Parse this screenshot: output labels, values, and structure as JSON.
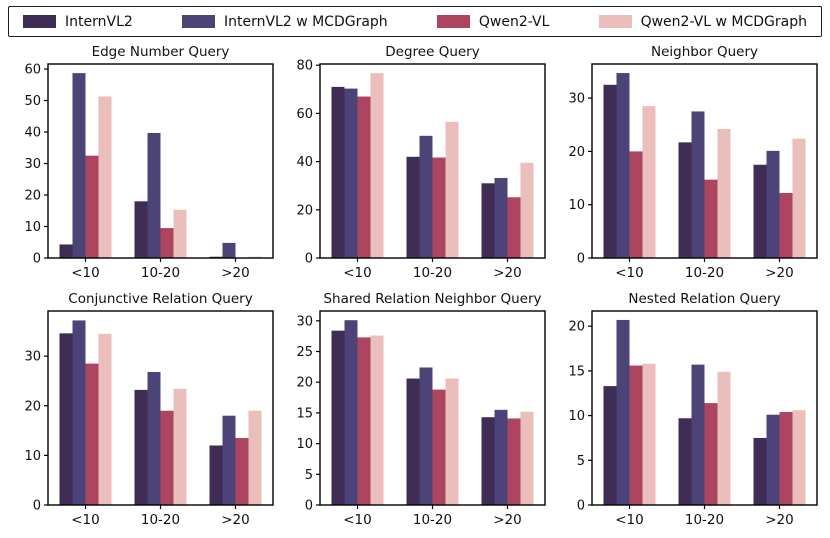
{
  "figure": {
    "background": "#ffffff"
  },
  "legend": {
    "border_color": "#1f1f1f",
    "items": [
      {
        "label": "InternVL2",
        "color": "#3F2D55"
      },
      {
        "label": "InternVL2 w MCDGraph",
        "color": "#4C4377"
      },
      {
        "label": "Qwen2-VL",
        "color": "#AE4560"
      },
      {
        "label": "Qwen2-VL w MCDGraph",
        "color": "#EABEBA"
      }
    ]
  },
  "chart_data": [
    {
      "type": "bar",
      "title": "Edge Number Query",
      "categories": [
        "<10",
        "10-20",
        ">20"
      ],
      "series": [
        {
          "name": "InternVL2",
          "values": [
            4.3,
            18.0,
            0.4
          ]
        },
        {
          "name": "InternVL2 w MCDGraph",
          "values": [
            58.7,
            39.7,
            4.8
          ]
        },
        {
          "name": "Qwen2-VL",
          "values": [
            32.5,
            9.5,
            0.0
          ]
        },
        {
          "name": "Qwen2-VL w MCDGraph",
          "values": [
            51.3,
            15.3,
            0.4
          ]
        }
      ],
      "ylim": [
        0,
        61.6
      ],
      "yticks": [
        0,
        10,
        20,
        30,
        40,
        50,
        60
      ],
      "grid": false,
      "legend_position": "figure-top"
    },
    {
      "type": "bar",
      "title": "Degree Query",
      "categories": [
        "<10",
        "10-20",
        ">20"
      ],
      "series": [
        {
          "name": "InternVL2",
          "values": [
            71.0,
            42.0,
            31.0
          ]
        },
        {
          "name": "InternVL2 w MCDGraph",
          "values": [
            70.3,
            50.7,
            33.2
          ]
        },
        {
          "name": "Qwen2-VL",
          "values": [
            67.0,
            41.7,
            25.2
          ]
        },
        {
          "name": "Qwen2-VL w MCDGraph",
          "values": [
            76.7,
            56.5,
            39.5
          ]
        }
      ],
      "ylim": [
        0,
        80.5
      ],
      "yticks": [
        0,
        20,
        40,
        60,
        80
      ],
      "grid": false,
      "legend_position": "figure-top"
    },
    {
      "type": "bar",
      "title": "Neighbor Query",
      "categories": [
        "<10",
        "10-20",
        ">20"
      ],
      "series": [
        {
          "name": "InternVL2",
          "values": [
            32.5,
            21.7,
            17.5
          ]
        },
        {
          "name": "InternVL2 w MCDGraph",
          "values": [
            34.7,
            27.5,
            20.1
          ]
        },
        {
          "name": "Qwen2-VL",
          "values": [
            20.0,
            14.7,
            12.2
          ]
        },
        {
          "name": "Qwen2-VL w MCDGraph",
          "values": [
            28.5,
            24.2,
            22.4
          ]
        }
      ],
      "ylim": [
        0,
        36.4
      ],
      "yticks": [
        0,
        10,
        20,
        30
      ],
      "grid": false,
      "legend_position": "figure-top"
    },
    {
      "type": "bar",
      "title": "Conjunctive Relation Query",
      "categories": [
        "<10",
        "10-20",
        ">20"
      ],
      "series": [
        {
          "name": "InternVL2",
          "values": [
            34.6,
            23.2,
            12.0
          ]
        },
        {
          "name": "InternVL2 w MCDGraph",
          "values": [
            37.2,
            26.8,
            18.0
          ]
        },
        {
          "name": "Qwen2-VL",
          "values": [
            28.5,
            19.0,
            13.5
          ]
        },
        {
          "name": "Qwen2-VL w MCDGraph",
          "values": [
            34.5,
            23.4,
            19.0
          ]
        }
      ],
      "ylim": [
        0,
        39.1
      ],
      "yticks": [
        0,
        10,
        20,
        30
      ],
      "grid": false,
      "legend_position": "figure-top"
    },
    {
      "type": "bar",
      "title": "Shared Relation Neighbor Query",
      "categories": [
        "<10",
        "10-20",
        ">20"
      ],
      "series": [
        {
          "name": "InternVL2",
          "values": [
            28.4,
            20.6,
            14.3
          ]
        },
        {
          "name": "InternVL2 w MCDGraph",
          "values": [
            30.1,
            22.4,
            15.5
          ]
        },
        {
          "name": "Qwen2-VL",
          "values": [
            27.3,
            18.8,
            14.1
          ]
        },
        {
          "name": "Qwen2-VL w MCDGraph",
          "values": [
            27.6,
            20.6,
            15.2
          ]
        }
      ],
      "ylim": [
        0,
        31.6
      ],
      "yticks": [
        0,
        5,
        10,
        15,
        20,
        25,
        30
      ],
      "grid": false,
      "legend_position": "figure-top"
    },
    {
      "type": "bar",
      "title": "Nested Relation Query",
      "categories": [
        "<10",
        "10-20",
        ">20"
      ],
      "series": [
        {
          "name": "InternVL2",
          "values": [
            13.3,
            9.7,
            7.5
          ]
        },
        {
          "name": "InternVL2 w MCDGraph",
          "values": [
            20.7,
            15.7,
            10.1
          ]
        },
        {
          "name": "Qwen2-VL",
          "values": [
            15.6,
            11.4,
            10.4
          ]
        },
        {
          "name": "Qwen2-VL w MCDGraph",
          "values": [
            15.8,
            14.9,
            10.6
          ]
        }
      ],
      "ylim": [
        0,
        21.7
      ],
      "yticks": [
        0,
        5,
        10,
        15,
        20
      ],
      "grid": false,
      "legend_position": "figure-top"
    }
  ]
}
